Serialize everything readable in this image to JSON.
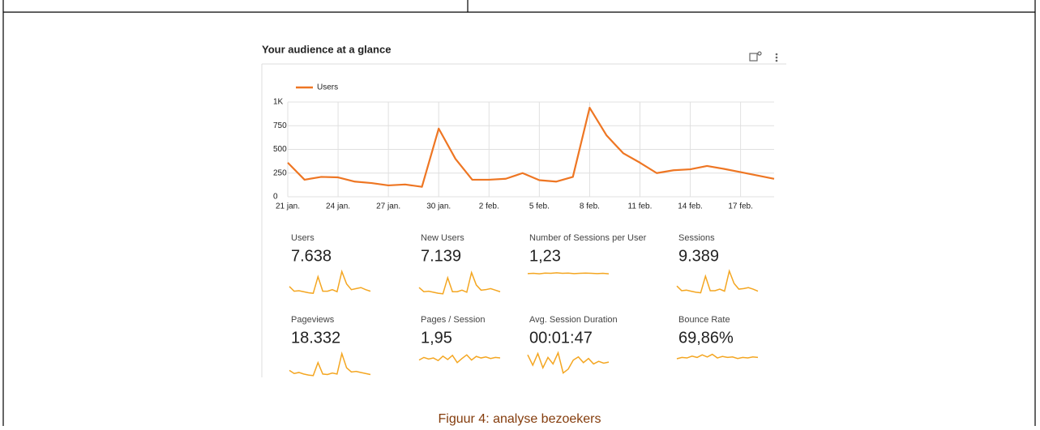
{
  "chart_data": {
    "type": "line",
    "title": "Your audience at a glance",
    "categories": [
      "21 jan.",
      null,
      null,
      "24 jan.",
      null,
      null,
      "27 jan.",
      null,
      null,
      "30 jan.",
      null,
      null,
      "2 feb.",
      null,
      null,
      "5 feb.",
      null,
      null,
      "8 feb.",
      null,
      null,
      "11 feb.",
      null,
      null,
      "14 feb.",
      null,
      null,
      "17 feb.",
      null,
      null
    ],
    "series": [
      {
        "name": "Users",
        "color": "#ee7623",
        "values": [
          360,
          180,
          210,
          205,
          160,
          145,
          120,
          130,
          105,
          720,
          400,
          180,
          180,
          190,
          250,
          175,
          160,
          210,
          940,
          650,
          460,
          360,
          250,
          280,
          290,
          325,
          295,
          260,
          225,
          190
        ]
      }
    ],
    "ylim": [
      0,
      1000
    ],
    "yticks": [
      0,
      250,
      500,
      750,
      {
        "value": 1000,
        "label": "1K"
      }
    ],
    "grid": true
  },
  "metrics": {
    "spark_ylim": [
      0,
      100
    ],
    "spark_color": "#f4a621",
    "items": [
      {
        "label": "Users",
        "value": "7.638",
        "spark": [
          38,
          20,
          22,
          18,
          14,
          12,
          76,
          20,
          20,
          26,
          18,
          96,
          48,
          26,
          30,
          34,
          26,
          20
        ]
      },
      {
        "label": "New Users",
        "value": "7.139",
        "spark": [
          34,
          18,
          20,
          16,
          12,
          10,
          72,
          18,
          18,
          24,
          16,
          92,
          44,
          24,
          26,
          30,
          24,
          18
        ]
      },
      {
        "label": "Number of Sessions per User",
        "value": "1,23",
        "spark": [
          88,
          89,
          87,
          90,
          89,
          91,
          89,
          90,
          88,
          89,
          90,
          89,
          88,
          89,
          87
        ]
      },
      {
        "label": "Sessions",
        "value": "9.389",
        "spark": [
          40,
          22,
          24,
          20,
          16,
          14,
          78,
          22,
          22,
          28,
          20,
          98,
          50,
          28,
          30,
          34,
          28,
          20
        ]
      },
      {
        "label": "Pageviews",
        "value": "18.332",
        "spark": [
          30,
          18,
          22,
          16,
          12,
          10,
          60,
          16,
          14,
          20,
          16,
          95,
          40,
          24,
          26,
          22,
          18,
          14
        ]
      },
      {
        "label": "Pages / Session",
        "value": "1,95",
        "spark": [
          70,
          80,
          74,
          78,
          68,
          85,
          72,
          88,
          60,
          76,
          90,
          70,
          84,
          78,
          82,
          76,
          80,
          78
        ]
      },
      {
        "label": "Avg. Session Duration",
        "value": "00:01:47",
        "spark": [
          90,
          50,
          95,
          40,
          80,
          55,
          98,
          20,
          35,
          70,
          82,
          60,
          76,
          55,
          65,
          58,
          62
        ]
      },
      {
        "label": "Bounce Rate",
        "value": "69,86%",
        "spark": [
          75,
          80,
          78,
          85,
          80,
          90,
          82,
          92,
          78,
          84,
          80,
          82,
          76,
          80,
          78,
          82,
          80
        ]
      }
    ]
  },
  "caption": "Figuur 4: analyse bezoekers"
}
